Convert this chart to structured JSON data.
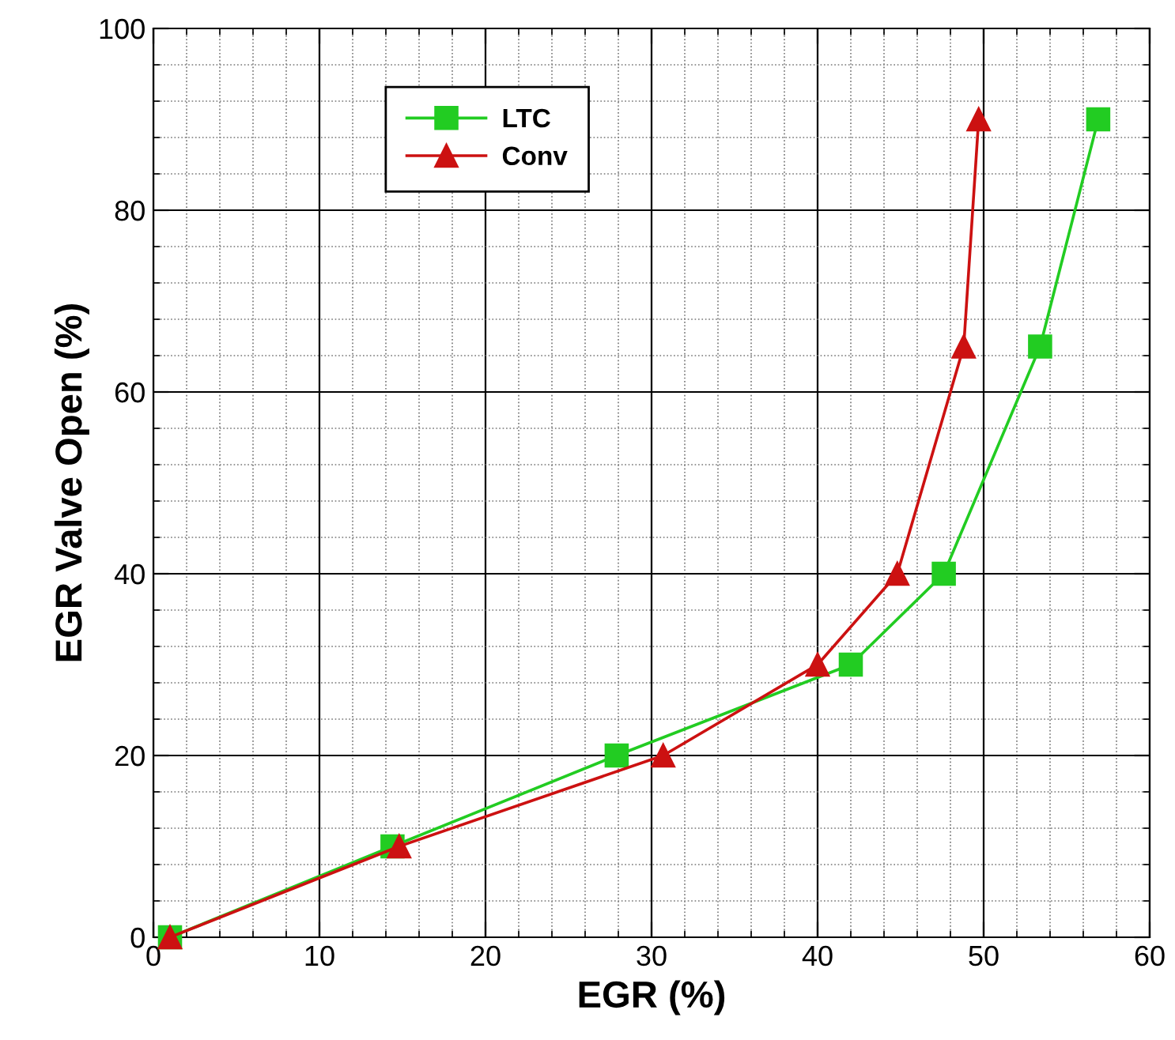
{
  "chart_data": {
    "type": "line",
    "xlabel": "EGR (%)",
    "ylabel": "EGR Valve Open (%)",
    "xlim": [
      0,
      60
    ],
    "xticks": [
      0,
      10,
      20,
      30,
      40,
      50,
      60
    ],
    "ylim": [
      0,
      100
    ],
    "yticks": [
      0,
      20,
      40,
      60,
      80,
      100
    ],
    "grid": true,
    "legend": "top left",
    "line_style": "solid",
    "series": [
      {
        "name": "LTC",
        "color": "#22cc22",
        "marker": "square",
        "x": [
          1,
          14.4,
          27.9,
          42.0,
          47.6,
          53.4,
          56.9
        ],
        "values": [
          0,
          10,
          20,
          30,
          40,
          65,
          90
        ]
      },
      {
        "name": "Conv",
        "color": "#cc1111",
        "marker": "triangle",
        "x": [
          1,
          14.8,
          30.7,
          40.0,
          44.8,
          48.8,
          49.7
        ],
        "values": [
          0,
          10,
          20,
          30,
          40,
          65,
          90
        ]
      }
    ]
  }
}
